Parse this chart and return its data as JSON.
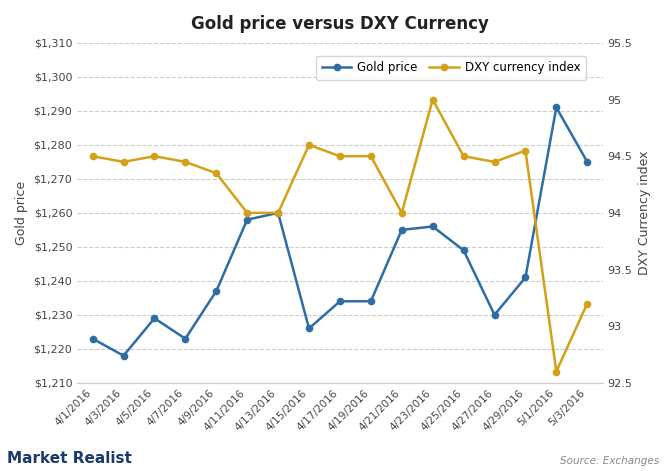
{
  "title": "Gold price versus DXY Currency",
  "ylabel_left": "Gold price",
  "ylabel_right": "DXY Currency index",
  "source_text": "Source: Exchanges",
  "watermark": "Market Realist",
  "dates": [
    "4/1/2016",
    "4/3/2016",
    "4/5/2016",
    "4/7/2016",
    "4/9/2016",
    "4/11/2016",
    "4/13/2016",
    "4/15/2016",
    "4/17/2016",
    "4/19/2016",
    "4/21/2016",
    "4/23/2016",
    "4/25/2016",
    "4/27/2016",
    "4/29/2016",
    "5/1/2016",
    "5/3/2016"
  ],
  "gold_y": [
    1223,
    1218,
    1229,
    1223,
    1237,
    1258,
    1260,
    1226,
    1234,
    1234,
    1255,
    1256,
    1249,
    1230,
    1241,
    1291,
    1275
  ],
  "dxy_y": [
    94.5,
    94.45,
    94.5,
    94.45,
    94.35,
    94.0,
    94.0,
    94.6,
    94.5,
    94.5,
    94.0,
    95.0,
    94.5,
    94.45,
    94.55,
    92.6,
    93.2
  ],
  "gold_color": "#2E6DA4",
  "dxy_color": "#D4A017",
  "background_color": "#ffffff",
  "grid_color": "#cccccc",
  "gold_ylim": [
    1210,
    1310
  ],
  "dxy_ylim": [
    92.5,
    95.5
  ],
  "gold_yticks": [
    1210,
    1220,
    1230,
    1240,
    1250,
    1260,
    1270,
    1280,
    1290,
    1300,
    1310
  ],
  "dxy_yticks": [
    92.5,
    93.0,
    93.5,
    94.0,
    94.5,
    95.0,
    95.5
  ],
  "legend_labels": [
    "Gold price",
    "DXY currency index"
  ]
}
